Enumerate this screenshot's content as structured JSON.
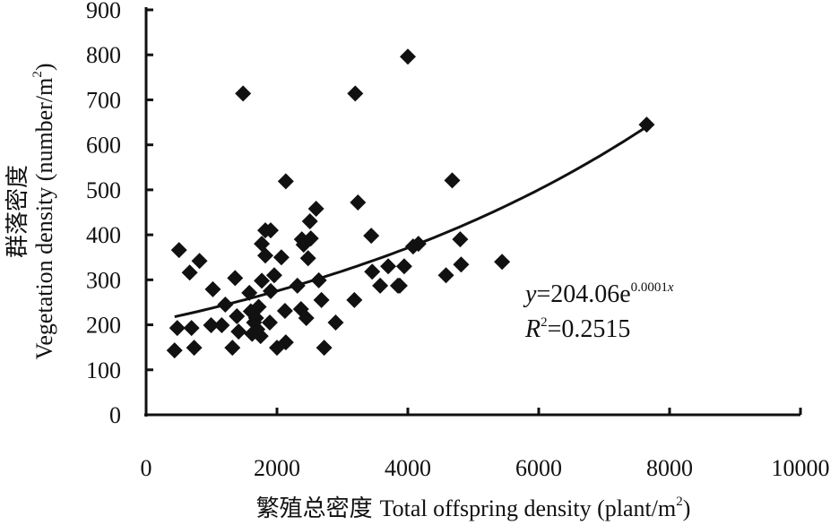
{
  "chart_data": {
    "type": "scatter",
    "title": "",
    "xlabel": "繁殖总密度 Total offspring density (plant/m²)",
    "xlabel_zh": "繁殖总密度",
    "xlabel_en": "Total offspring density (plant/m",
    "xlabel_sup": "2",
    "xlabel_end": ")",
    "ylabel": "群落密度 Vegetation density (number/m²)",
    "ylabel_zh": "群落密度",
    "ylabel_en": "Vegetation density (number/m",
    "ylabel_sup": "2",
    "ylabel_end": ")",
    "xlim": [
      0,
      10000
    ],
    "ylim": [
      0,
      900
    ],
    "xticks": [
      "0",
      "2000",
      "4000",
      "6000",
      "8000",
      "10000"
    ],
    "yticks": [
      "0",
      "100",
      "200",
      "300",
      "400",
      "500",
      "600",
      "700",
      "800",
      "900"
    ],
    "grid": false,
    "marker": "diamond",
    "color": "#111111",
    "points": [
      [
        435,
        143
      ],
      [
        476,
        193
      ],
      [
        503,
        366
      ],
      [
        694,
        193
      ],
      [
        734,
        149
      ],
      [
        666,
        316
      ],
      [
        816,
        342
      ],
      [
        993,
        199
      ],
      [
        1020,
        279
      ],
      [
        1156,
        199
      ],
      [
        1319,
        149
      ],
      [
        1360,
        304
      ],
      [
        1210,
        245
      ],
      [
        1578,
        271
      ],
      [
        1387,
        219
      ],
      [
        1414,
        185
      ],
      [
        1482,
        714
      ],
      [
        1600,
        230
      ],
      [
        1650,
        205
      ],
      [
        1700,
        190
      ],
      [
        1750,
        175
      ],
      [
        1680,
        215
      ],
      [
        1620,
        180
      ],
      [
        1720,
        240
      ],
      [
        1768,
        380
      ],
      [
        1822,
        410
      ],
      [
        1904,
        410
      ],
      [
        1822,
        354
      ],
      [
        2067,
        350
      ],
      [
        1958,
        310
      ],
      [
        1768,
        298
      ],
      [
        1904,
        275
      ],
      [
        1890,
        205
      ],
      [
        2000,
        149
      ],
      [
        2135,
        161
      ],
      [
        2122,
        231
      ],
      [
        2135,
        519
      ],
      [
        2312,
        287
      ],
      [
        2380,
        390
      ],
      [
        2517,
        392
      ],
      [
        2407,
        378
      ],
      [
        2503,
        430
      ],
      [
        2598,
        458
      ],
      [
        2475,
        348
      ],
      [
        2367,
        235
      ],
      [
        2448,
        215
      ],
      [
        2639,
        299
      ],
      [
        2680,
        255
      ],
      [
        2721,
        149
      ],
      [
        2897,
        205
      ],
      [
        3183,
        255
      ],
      [
        3237,
        472
      ],
      [
        3196,
        714
      ],
      [
        3441,
        398
      ],
      [
        3455,
        318
      ],
      [
        3700,
        330
      ],
      [
        3577,
        287
      ],
      [
        3849,
        287
      ],
      [
        3876,
        287
      ],
      [
        3944,
        330
      ],
      [
        4000,
        796
      ],
      [
        4080,
        374
      ],
      [
        4162,
        380
      ],
      [
        4583,
        310
      ],
      [
        4678,
        521
      ],
      [
        4800,
        390
      ],
      [
        4814,
        334
      ],
      [
        5440,
        340
      ],
      [
        7650,
        645
      ]
    ],
    "trendline": {
      "type": "exponential",
      "a": 204.06,
      "b_fit": 0.0001495,
      "x_range": [
        435,
        7650
      ]
    },
    "annotations": {
      "eq_y": "y",
      "eq_rest": "=204.06e",
      "eq_exp": "0.0001",
      "eq_exp_x": "x",
      "r2_R": "R",
      "r2_sup": "2",
      "r2_rest": "=0.2515"
    }
  }
}
